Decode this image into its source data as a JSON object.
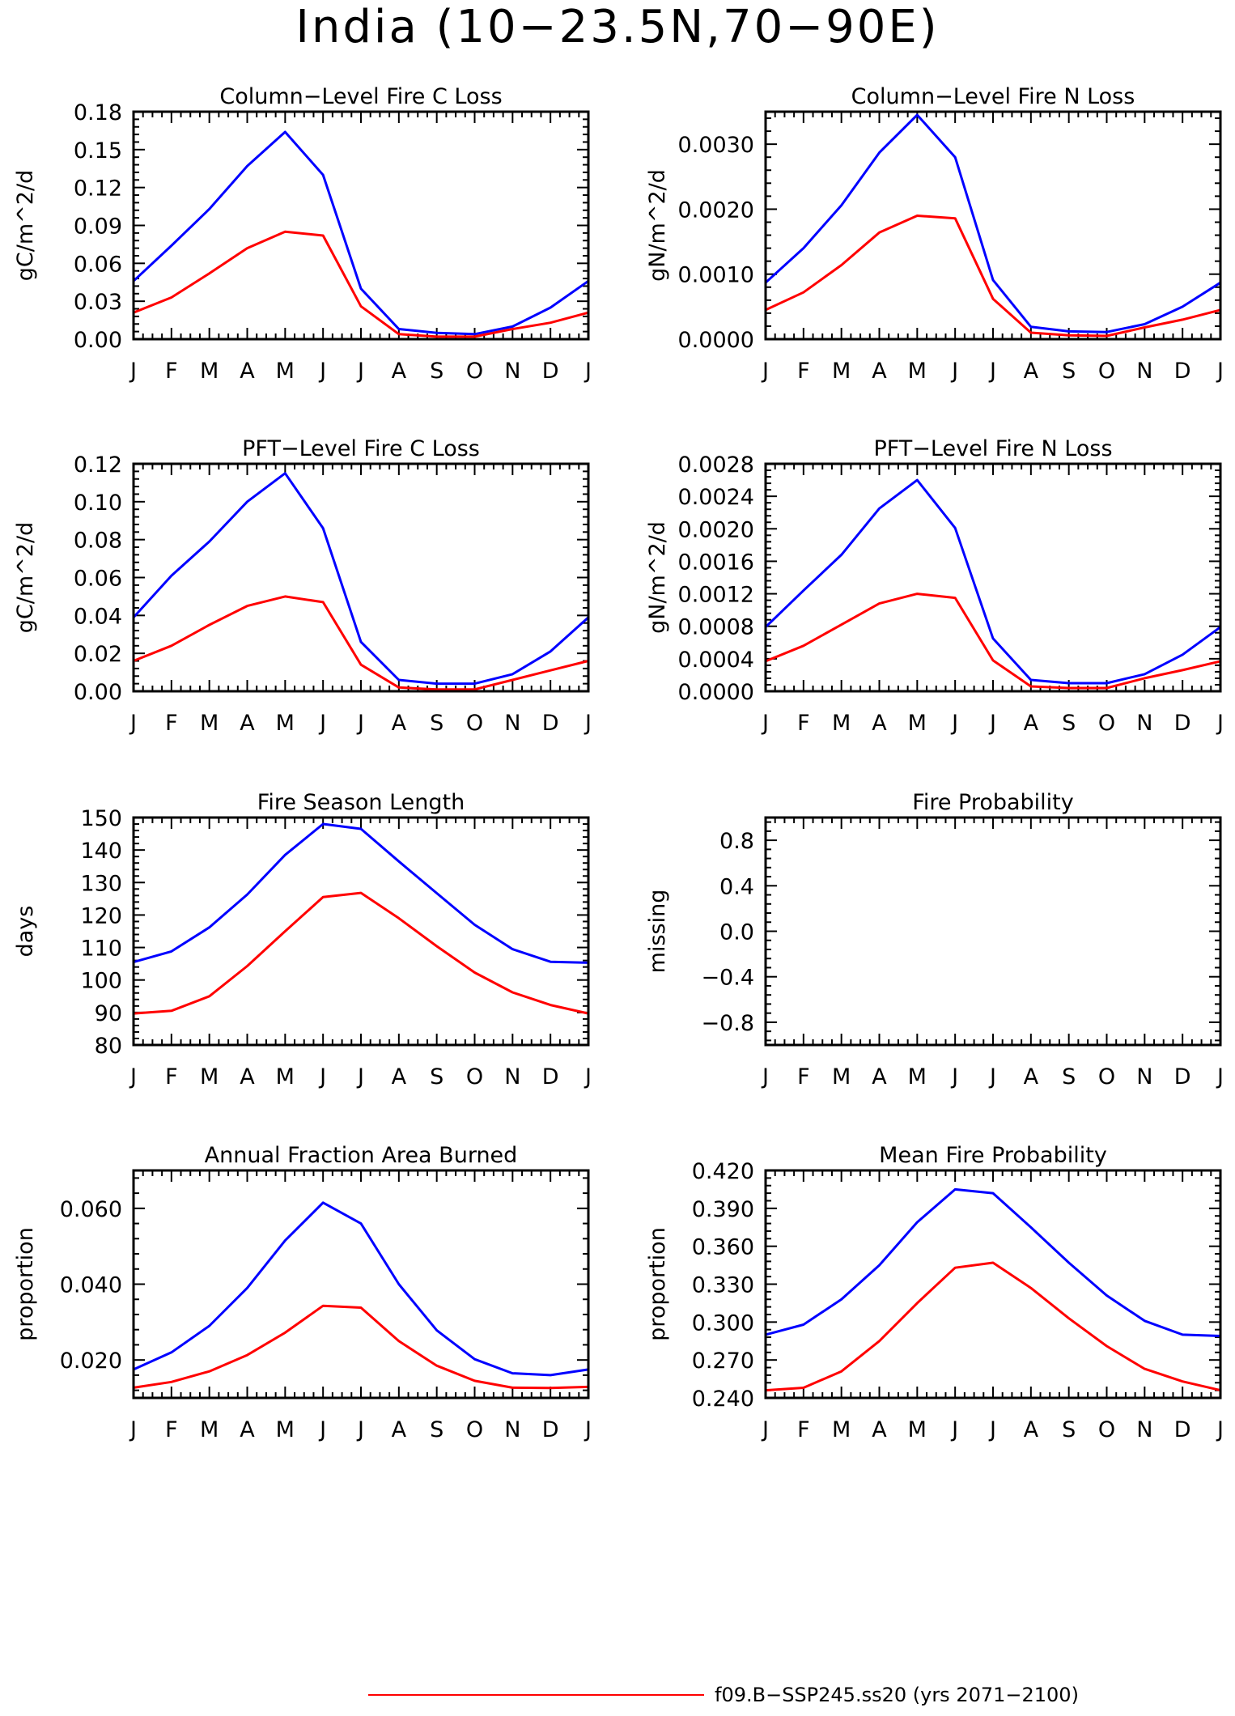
{
  "figure": {
    "title": "India (10−23.5N,70−90E)",
    "legend": [
      {
        "label": "f09.B−SSP245.ss20 (yrs 2071−2100)",
        "color": "#ff0000"
      }
    ]
  },
  "chart_data": [
    {
      "type": "line",
      "title": "Column−Level Fire C Loss",
      "ylabel": "gC/m^2/d",
      "x": [
        "J",
        "F",
        "M",
        "A",
        "M",
        "J",
        "J",
        "A",
        "S",
        "O",
        "N",
        "D",
        "J"
      ],
      "ylim": [
        0,
        0.18
      ],
      "yticks": [
        "0.00",
        "0.03",
        "0.06",
        "0.09",
        "0.12",
        "0.15",
        "0.18"
      ],
      "grid": false,
      "series": [
        {
          "color": "#0000ff",
          "values": [
            0.046,
            0.074,
            0.103,
            0.137,
            0.164,
            0.13,
            0.04,
            0.008,
            0.005,
            0.004,
            0.01,
            0.025,
            0.046
          ]
        },
        {
          "color": "#ff0000",
          "values": [
            0.021,
            0.033,
            0.052,
            0.072,
            0.085,
            0.082,
            0.026,
            0.004,
            0.002,
            0.002,
            0.008,
            0.013,
            0.021
          ]
        }
      ]
    },
    {
      "type": "line",
      "title": "Column−Level Fire N Loss",
      "ylabel": "gN/m^2/d",
      "x": [
        "J",
        "F",
        "M",
        "A",
        "M",
        "J",
        "J",
        "A",
        "S",
        "O",
        "N",
        "D",
        "J"
      ],
      "ylim": [
        0,
        0.0035
      ],
      "yticks": [
        "0.0000",
        "0.0010",
        "0.0020",
        "0.0030"
      ],
      "grid": false,
      "series": [
        {
          "color": "#0000ff",
          "values": [
            0.00087,
            0.0014,
            0.00206,
            0.00287,
            0.00345,
            0.0028,
            0.00091,
            0.00019,
            0.00012,
            0.00011,
            0.00023,
            0.0005,
            0.00087
          ]
        },
        {
          "color": "#ff0000",
          "values": [
            0.00045,
            0.00072,
            0.00114,
            0.00164,
            0.0019,
            0.00186,
            0.00062,
            0.0001,
            6e-05,
            5e-05,
            0.00018,
            0.0003,
            0.00045
          ]
        }
      ]
    },
    {
      "type": "line",
      "title": "PFT−Level Fire C Loss",
      "ylabel": "gC/m^2/d",
      "x": [
        "J",
        "F",
        "M",
        "A",
        "M",
        "J",
        "J",
        "A",
        "S",
        "O",
        "N",
        "D",
        "J"
      ],
      "ylim": [
        0,
        0.12
      ],
      "yticks": [
        "0.00",
        "0.02",
        "0.04",
        "0.06",
        "0.08",
        "0.10",
        "0.12"
      ],
      "grid": false,
      "series": [
        {
          "color": "#0000ff",
          "values": [
            0.039,
            0.061,
            0.079,
            0.1,
            0.115,
            0.086,
            0.026,
            0.006,
            0.004,
            0.004,
            0.009,
            0.021,
            0.039
          ]
        },
        {
          "color": "#ff0000",
          "values": [
            0.016,
            0.024,
            0.035,
            0.045,
            0.05,
            0.047,
            0.014,
            0.002,
            0.001,
            0.001,
            0.006,
            0.011,
            0.016
          ]
        }
      ]
    },
    {
      "type": "line",
      "title": "PFT−Level Fire N Loss",
      "ylabel": "gN/m^2/d",
      "x": [
        "J",
        "F",
        "M",
        "A",
        "M",
        "J",
        "J",
        "A",
        "S",
        "O",
        "N",
        "D",
        "J"
      ],
      "ylim": [
        0,
        0.0028
      ],
      "yticks": [
        "0.0000",
        "0.0004",
        "0.0008",
        "0.0012",
        "0.0016",
        "0.0020",
        "0.0024",
        "0.0028"
      ],
      "grid": false,
      "series": [
        {
          "color": "#0000ff",
          "values": [
            0.00079,
            0.00124,
            0.00168,
            0.00225,
            0.0026,
            0.00201,
            0.00065,
            0.00014,
            0.0001,
            0.0001,
            0.00021,
            0.00045,
            0.00079
          ]
        },
        {
          "color": "#ff0000",
          "values": [
            0.00037,
            0.00056,
            0.00082,
            0.00108,
            0.0012,
            0.00115,
            0.00038,
            6e-05,
            4e-05,
            4e-05,
            0.00016,
            0.00026,
            0.00037
          ]
        }
      ]
    },
    {
      "type": "line",
      "title": "Fire Season Length",
      "ylabel": "days",
      "x": [
        "J",
        "F",
        "M",
        "A",
        "M",
        "J",
        "J",
        "A",
        "S",
        "O",
        "N",
        "D",
        "J"
      ],
      "ylim": [
        80,
        150
      ],
      "yticks": [
        "80",
        "90",
        "100",
        "110",
        "120",
        "130",
        "140",
        "150"
      ],
      "grid": false,
      "series": [
        {
          "color": "#0000ff",
          "values": [
            105.5,
            108.8,
            116.2,
            126.3,
            138.5,
            148.0,
            146.5,
            136.5,
            126.7,
            117.0,
            109.5,
            105.6,
            105.3
          ]
        },
        {
          "color": "#ff0000",
          "values": [
            89.7,
            90.5,
            95.0,
            104.3,
            115.0,
            125.5,
            126.8,
            119.0,
            110.4,
            102.3,
            96.2,
            92.3,
            89.7
          ]
        }
      ]
    },
    {
      "type": "line",
      "title": "Fire Probability",
      "ylabel": "missing",
      "x": [
        "J",
        "F",
        "M",
        "A",
        "M",
        "J",
        "J",
        "A",
        "S",
        "O",
        "N",
        "D",
        "J"
      ],
      "ylim": [
        -1,
        1
      ],
      "yticks": [
        "−0.8",
        "−0.4",
        "0.0",
        "0.4",
        "0.8"
      ],
      "grid": false,
      "series": []
    },
    {
      "type": "line",
      "title": "Annual Fraction Area Burned",
      "ylabel": "proportion",
      "x": [
        "J",
        "F",
        "M",
        "A",
        "M",
        "J",
        "J",
        "A",
        "S",
        "O",
        "N",
        "D",
        "J"
      ],
      "ylim": [
        0.01,
        0.07
      ],
      "yticks": [
        "0.020",
        "0.040",
        "0.060"
      ],
      "grid": false,
      "series": [
        {
          "color": "#0000ff",
          "values": [
            0.0175,
            0.022,
            0.029,
            0.039,
            0.0515,
            0.0615,
            0.056,
            0.04,
            0.0278,
            0.0202,
            0.0165,
            0.016,
            0.0175
          ]
        },
        {
          "color": "#ff0000",
          "values": [
            0.0127,
            0.0142,
            0.017,
            0.0213,
            0.0272,
            0.0343,
            0.0338,
            0.025,
            0.0185,
            0.0145,
            0.0127,
            0.0126,
            0.0129
          ]
        }
      ]
    },
    {
      "type": "line",
      "title": "Mean Fire Probability",
      "ylabel": "proportion",
      "x": [
        "J",
        "F",
        "M",
        "A",
        "M",
        "J",
        "J",
        "A",
        "S",
        "O",
        "N",
        "D",
        "J"
      ],
      "ylim": [
        0.24,
        0.42
      ],
      "yticks": [
        "0.240",
        "0.270",
        "0.300",
        "0.330",
        "0.360",
        "0.390",
        "0.420"
      ],
      "grid": false,
      "series": [
        {
          "color": "#0000ff",
          "values": [
            0.29,
            0.298,
            0.318,
            0.345,
            0.379,
            0.405,
            0.402,
            0.375,
            0.347,
            0.321,
            0.301,
            0.29,
            0.289
          ]
        },
        {
          "color": "#ff0000",
          "values": [
            0.246,
            0.248,
            0.261,
            0.285,
            0.315,
            0.343,
            0.347,
            0.327,
            0.303,
            0.281,
            0.263,
            0.253,
            0.246
          ]
        }
      ]
    }
  ]
}
